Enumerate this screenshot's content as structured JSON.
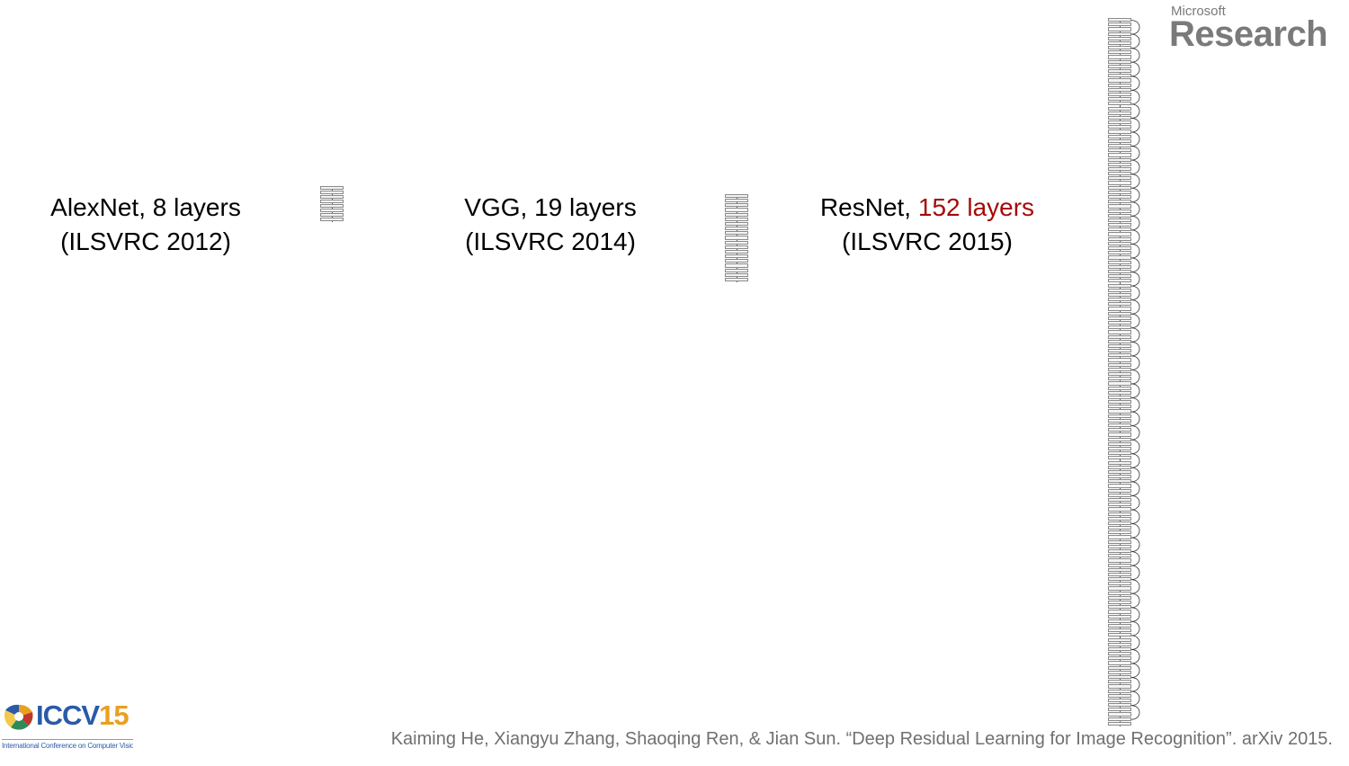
{
  "networks": [
    {
      "name": "AlexNet, ",
      "count_text": "8 layers",
      "competition": "(ILSVRC 2012)",
      "layers": 8
    },
    {
      "name": "VGG, ",
      "count_text": "19 layers",
      "competition": "(ILSVRC 2014)",
      "layers": 19
    },
    {
      "name": "ResNet, ",
      "count_text": "152 layers",
      "competition": "(ILSVRC 2015)",
      "layers": 152
    }
  ],
  "accent_color": "#a50a0a",
  "logo_top_right": {
    "small": "Microsoft",
    "big": "Research"
  },
  "logo_bottom_left": {
    "title": "ICCV",
    "number": "15",
    "subtitle": "International Conference on Computer Vision"
  },
  "citation": "Kaiming He, Xiangyu Zhang, Shaoqing Ren, & Jian Sun. “Deep Residual Learning for Image Recognition”. arXiv 2015."
}
